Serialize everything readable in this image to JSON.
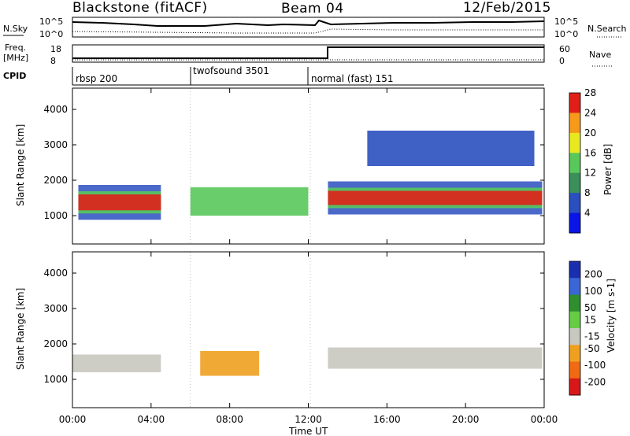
{
  "header": {
    "station": "Blackstone (fitACF)",
    "beam": "Beam 04",
    "date": "12/Feb/2015"
  },
  "noise_panel": {
    "left_label": "N.Sky",
    "right_label": "N.Search",
    "left_ticks": [
      "10^5",
      "10^0"
    ],
    "right_ticks": [
      "10^5",
      "10^0"
    ]
  },
  "freq_panel": {
    "left_label_line1": "Freq.",
    "left_label_line2": "[MHz]",
    "right_label": "Nave",
    "left_ticks": [
      "18",
      "8"
    ],
    "right_ticks": [
      "60",
      "0"
    ]
  },
  "cpid_panel": {
    "label": "CPID",
    "modes": [
      {
        "name": "rbsp 200",
        "start_hour": 0,
        "end_hour": 6
      },
      {
        "name": "twofsound 3501",
        "start_hour": 6,
        "end_hour": 12.1
      },
      {
        "name": "normal (fast) 151",
        "start_hour": 12.1,
        "end_hour": 24
      }
    ]
  },
  "chart_data": [
    {
      "type": "heatmap",
      "name": "power",
      "ylabel": "Slant Range [km]",
      "yticks": [
        "1000",
        "2000",
        "3000",
        "4000"
      ],
      "ylim": [
        200,
        4600
      ],
      "xlim": [
        0,
        24
      ],
      "colorbar_label": "Power [dB]",
      "colorbar_ticks": [
        "4",
        "8",
        "12",
        "16",
        "20",
        "24",
        "28"
      ],
      "colorbar_colors": [
        "#0a14e6",
        "#2a4fbf",
        "#3a8f5a",
        "#58c85a",
        "#e8e820",
        "#f59a1b",
        "#e02018"
      ],
      "features": [
        {
          "hours": [
            0.3,
            4.5
          ],
          "range_km": [
            1150,
            1600
          ],
          "level": "strong"
        },
        {
          "hours": [
            13.0,
            23.9
          ],
          "range_km": [
            1300,
            1700
          ],
          "level": "strong"
        },
        {
          "hours": [
            6.0,
            12.0
          ],
          "range_km": [
            1000,
            1800
          ],
          "level": "medium"
        },
        {
          "hours": [
            15.0,
            23.5
          ],
          "range_km": [
            2400,
            3400
          ],
          "level": "weak"
        }
      ]
    },
    {
      "type": "heatmap",
      "name": "velocity",
      "ylabel": "Slant Range [km]",
      "yticks": [
        "1000",
        "2000",
        "3000",
        "4000"
      ],
      "ylim": [
        200,
        4600
      ],
      "xlim": [
        0,
        24
      ],
      "colorbar_label": "Velocity [m s-1]",
      "colorbar_ticks": [
        "200",
        "100",
        "50",
        "15",
        "-15",
        "-50",
        "-100",
        "-200"
      ],
      "colorbar_colors": [
        "#1a2fb0",
        "#3a66d6",
        "#2f8f2f",
        "#66cc44",
        "#c8c8c0",
        "#f0a020",
        "#f06a14",
        "#d81818"
      ],
      "features": [
        {
          "hours": [
            0.0,
            4.5
          ],
          "range_km": [
            1200,
            1700
          ],
          "level": "ground"
        },
        {
          "hours": [
            13.0,
            23.9
          ],
          "range_km": [
            1300,
            1900
          ],
          "level": "ground"
        },
        {
          "hours": [
            6.5,
            9.5
          ],
          "range_km": [
            1100,
            1800
          ],
          "level": "negative"
        }
      ]
    }
  ],
  "x_axis": {
    "label": "Time UT",
    "ticks": [
      "00:00",
      "04:00",
      "08:00",
      "12:00",
      "16:00",
      "20:00",
      "00:00"
    ]
  }
}
